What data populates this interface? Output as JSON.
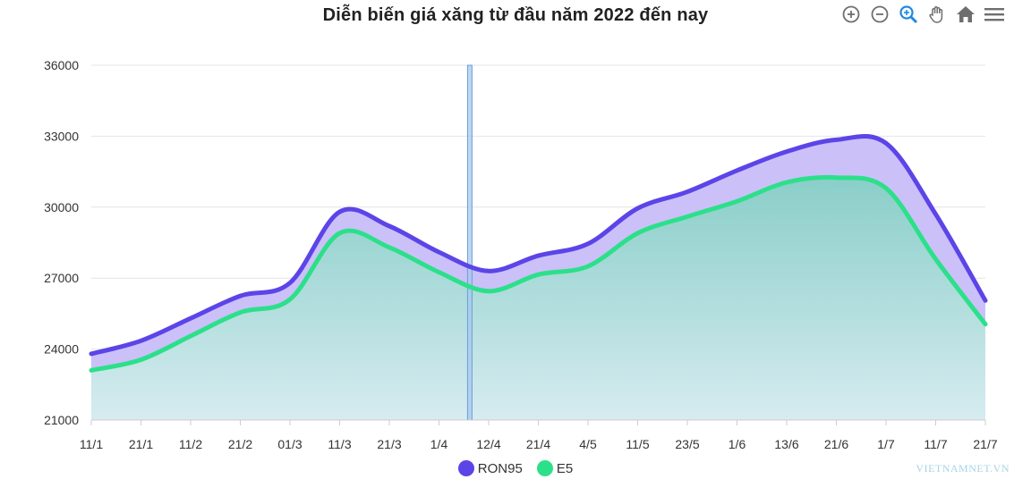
{
  "chart_data": {
    "type": "area",
    "title": "Diễn biến giá xăng từ đầu năm 2022 đến nay",
    "categories": [
      "11/1",
      "21/1",
      "11/2",
      "21/2",
      "01/3",
      "11/3",
      "21/3",
      "1/4",
      "12/4",
      "21/4",
      "4/5",
      "11/5",
      "23/5",
      "1/6",
      "13/6",
      "21/6",
      "1/7",
      "11/7",
      "21/7"
    ],
    "series": [
      {
        "name": "RON95",
        "color": "#5b45e8",
        "fill": "#c9bdf9",
        "values": [
          23800,
          24350,
          25300,
          26250,
          26800,
          29800,
          29200,
          28100,
          27300,
          27950,
          28450,
          29950,
          30650,
          31550,
          32350,
          32850,
          32700,
          29700,
          26050
        ]
      },
      {
        "name": "E5",
        "color": "#2ce08a",
        "fill": "#9dd8d0",
        "values": [
          23100,
          23550,
          24550,
          25550,
          26100,
          28900,
          28300,
          27250,
          26450,
          27150,
          27500,
          28900,
          29600,
          30250,
          31050,
          31250,
          30800,
          27800,
          25050
        ]
      }
    ],
    "ylim": [
      21000,
      36000
    ],
    "yticks": [
      "36000",
      "33000",
      "30000",
      "27000",
      "24000",
      "21000"
    ],
    "grid": true,
    "legend_position": "bottom-center",
    "crosshair_at": "between 1/4 and 12/4"
  },
  "toolbar": {
    "icons": [
      "zoom-in-icon",
      "zoom-out-icon",
      "zoom-select-icon",
      "pan-icon",
      "home-icon",
      "menu-icon"
    ]
  },
  "colors": {
    "axis_text": "#333333",
    "grid": "#e4e4e4",
    "crosshair": "#6a9fd8",
    "title": "#222222"
  },
  "watermark": "VIETNAMNET.VN"
}
